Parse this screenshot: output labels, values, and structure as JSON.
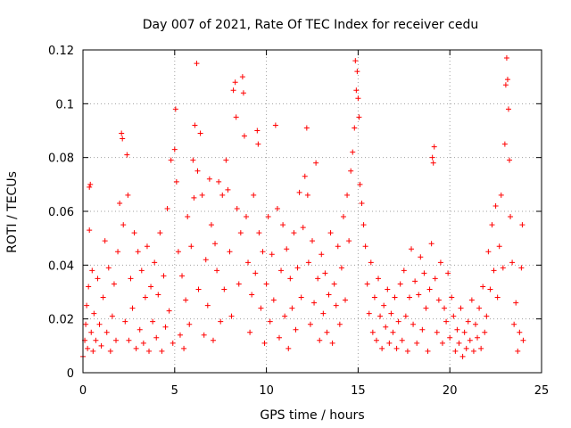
{
  "chart_data": {
    "type": "scatter",
    "title": "Day 007 of 2021, Rate Of TEC Index for receiver cedu",
    "xlabel": "GPS time / hours",
    "ylabel": "ROTI / TECUs",
    "xlim": [
      0,
      25
    ],
    "ylim": [
      0,
      0.12
    ],
    "xticks": [
      0,
      5,
      10,
      15,
      20,
      25
    ],
    "yticks": [
      0,
      0.02,
      0.04,
      0.06,
      0.08,
      0.1,
      0.12
    ],
    "xtick_labels": [
      "0",
      "5",
      "10",
      "15",
      "20",
      "25"
    ],
    "ytick_labels": [
      "0",
      "0.02",
      "0.04",
      "0.06",
      "0.08",
      "0.1",
      "0.12"
    ],
    "grid": true,
    "marker": "plus",
    "color": "#ff0000",
    "series": [
      {
        "points": [
          [
            0.0,
            0.006
          ],
          [
            0.1,
            0.012
          ],
          [
            0.15,
            0.018
          ],
          [
            0.2,
            0.025
          ],
          [
            0.25,
            0.009
          ],
          [
            0.3,
            0.032
          ],
          [
            0.35,
            0.069
          ],
          [
            0.35,
            0.053
          ],
          [
            0.4,
            0.07
          ],
          [
            0.45,
            0.015
          ],
          [
            0.5,
            0.038
          ],
          [
            0.55,
            0.008
          ],
          [
            0.6,
            0.022
          ],
          [
            0.7,
            0.012
          ],
          [
            0.8,
            0.035
          ],
          [
            0.9,
            0.018
          ],
          [
            1.0,
            0.01
          ],
          [
            1.1,
            0.028
          ],
          [
            1.2,
            0.049
          ],
          [
            1.3,
            0.015
          ],
          [
            1.4,
            0.039
          ],
          [
            1.5,
            0.008
          ],
          [
            1.6,
            0.021
          ],
          [
            1.7,
            0.033
          ],
          [
            1.8,
            0.012
          ],
          [
            1.9,
            0.045
          ],
          [
            2.0,
            0.063
          ],
          [
            2.1,
            0.089
          ],
          [
            2.15,
            0.087
          ],
          [
            2.2,
            0.055
          ],
          [
            2.3,
            0.019
          ],
          [
            2.4,
            0.081
          ],
          [
            2.45,
            0.066
          ],
          [
            2.5,
            0.012
          ],
          [
            2.6,
            0.035
          ],
          [
            2.7,
            0.024
          ],
          [
            2.8,
            0.052
          ],
          [
            2.9,
            0.009
          ],
          [
            3.0,
            0.045
          ],
          [
            3.1,
            0.016
          ],
          [
            3.2,
            0.038
          ],
          [
            3.3,
            0.011
          ],
          [
            3.4,
            0.028
          ],
          [
            3.5,
            0.047
          ],
          [
            3.6,
            0.008
          ],
          [
            3.7,
            0.032
          ],
          [
            3.8,
            0.019
          ],
          [
            3.9,
            0.041
          ],
          [
            4.0,
            0.013
          ],
          [
            4.1,
            0.029
          ],
          [
            4.2,
            0.052
          ],
          [
            4.3,
            0.008
          ],
          [
            4.4,
            0.036
          ],
          [
            4.5,
            0.017
          ],
          [
            4.6,
            0.061
          ],
          [
            4.7,
            0.023
          ],
          [
            4.8,
            0.079
          ],
          [
            4.9,
            0.011
          ],
          [
            5.0,
            0.083
          ],
          [
            5.05,
            0.098
          ],
          [
            5.1,
            0.071
          ],
          [
            5.2,
            0.045
          ],
          [
            5.3,
            0.014
          ],
          [
            5.4,
            0.036
          ],
          [
            5.5,
            0.009
          ],
          [
            5.6,
            0.027
          ],
          [
            5.7,
            0.058
          ],
          [
            5.8,
            0.018
          ],
          [
            5.9,
            0.047
          ],
          [
            6.0,
            0.079
          ],
          [
            6.05,
            0.065
          ],
          [
            6.1,
            0.092
          ],
          [
            6.2,
            0.115
          ],
          [
            6.25,
            0.075
          ],
          [
            6.3,
            0.031
          ],
          [
            6.4,
            0.089
          ],
          [
            6.5,
            0.066
          ],
          [
            6.6,
            0.014
          ],
          [
            6.7,
            0.042
          ],
          [
            6.8,
            0.025
          ],
          [
            6.9,
            0.072
          ],
          [
            7.0,
            0.055
          ],
          [
            7.1,
            0.012
          ],
          [
            7.2,
            0.048
          ],
          [
            7.3,
            0.038
          ],
          [
            7.4,
            0.071
          ],
          [
            7.5,
            0.019
          ],
          [
            7.6,
            0.066
          ],
          [
            7.7,
            0.031
          ],
          [
            7.8,
            0.079
          ],
          [
            7.9,
            0.068
          ],
          [
            8.0,
            0.045
          ],
          [
            8.1,
            0.021
          ],
          [
            8.2,
            0.105
          ],
          [
            8.3,
            0.108
          ],
          [
            8.35,
            0.095
          ],
          [
            8.4,
            0.061
          ],
          [
            8.5,
            0.033
          ],
          [
            8.6,
            0.052
          ],
          [
            8.7,
            0.11
          ],
          [
            8.75,
            0.104
          ],
          [
            8.8,
            0.088
          ],
          [
            8.9,
            0.058
          ],
          [
            9.0,
            0.041
          ],
          [
            9.1,
            0.015
          ],
          [
            9.2,
            0.029
          ],
          [
            9.3,
            0.066
          ],
          [
            9.4,
            0.037
          ],
          [
            9.5,
            0.09
          ],
          [
            9.55,
            0.085
          ],
          [
            9.6,
            0.052
          ],
          [
            9.7,
            0.024
          ],
          [
            9.8,
            0.045
          ],
          [
            9.9,
            0.011
          ],
          [
            10.0,
            0.033
          ],
          [
            10.1,
            0.058
          ],
          [
            10.2,
            0.019
          ],
          [
            10.3,
            0.044
          ],
          [
            10.4,
            0.027
          ],
          [
            10.5,
            0.092
          ],
          [
            10.6,
            0.061
          ],
          [
            10.7,
            0.013
          ],
          [
            10.8,
            0.038
          ],
          [
            10.9,
            0.055
          ],
          [
            11.0,
            0.021
          ],
          [
            11.1,
            0.046
          ],
          [
            11.2,
            0.009
          ],
          [
            11.3,
            0.035
          ],
          [
            11.4,
            0.024
          ],
          [
            11.5,
            0.052
          ],
          [
            11.6,
            0.016
          ],
          [
            11.7,
            0.039
          ],
          [
            11.8,
            0.067
          ],
          [
            11.9,
            0.028
          ],
          [
            12.0,
            0.054
          ],
          [
            12.1,
            0.073
          ],
          [
            12.2,
            0.091
          ],
          [
            12.25,
            0.066
          ],
          [
            12.3,
            0.041
          ],
          [
            12.4,
            0.018
          ],
          [
            12.5,
            0.049
          ],
          [
            12.6,
            0.026
          ],
          [
            12.7,
            0.078
          ],
          [
            12.8,
            0.035
          ],
          [
            12.9,
            0.012
          ],
          [
            13.0,
            0.044
          ],
          [
            13.1,
            0.022
          ],
          [
            13.2,
            0.037
          ],
          [
            13.3,
            0.015
          ],
          [
            13.4,
            0.029
          ],
          [
            13.5,
            0.052
          ],
          [
            13.6,
            0.011
          ],
          [
            13.7,
            0.033
          ],
          [
            13.8,
            0.025
          ],
          [
            13.9,
            0.047
          ],
          [
            14.0,
            0.018
          ],
          [
            14.1,
            0.039
          ],
          [
            14.2,
            0.058
          ],
          [
            14.3,
            0.027
          ],
          [
            14.4,
            0.066
          ],
          [
            14.5,
            0.049
          ],
          [
            14.6,
            0.075
          ],
          [
            14.7,
            0.082
          ],
          [
            14.8,
            0.091
          ],
          [
            14.85,
            0.116
          ],
          [
            14.9,
            0.105
          ],
          [
            14.95,
            0.112
          ],
          [
            15.0,
            0.102
          ],
          [
            15.05,
            0.095
          ],
          [
            15.1,
            0.07
          ],
          [
            15.2,
            0.063
          ],
          [
            15.3,
            0.055
          ],
          [
            15.4,
            0.047
          ],
          [
            15.5,
            0.033
          ],
          [
            15.6,
            0.022
          ],
          [
            15.7,
            0.041
          ],
          [
            15.8,
            0.015
          ],
          [
            15.9,
            0.028
          ],
          [
            16.0,
            0.012
          ],
          [
            16.1,
            0.035
          ],
          [
            16.2,
            0.021
          ],
          [
            16.3,
            0.009
          ],
          [
            16.4,
            0.025
          ],
          [
            16.5,
            0.017
          ],
          [
            16.6,
            0.031
          ],
          [
            16.7,
            0.011
          ],
          [
            16.8,
            0.022
          ],
          [
            16.9,
            0.015
          ],
          [
            17.0,
            0.028
          ],
          [
            17.1,
            0.009
          ],
          [
            17.2,
            0.019
          ],
          [
            17.3,
            0.033
          ],
          [
            17.4,
            0.012
          ],
          [
            17.5,
            0.038
          ],
          [
            17.6,
            0.021
          ],
          [
            17.7,
            0.008
          ],
          [
            17.8,
            0.028
          ],
          [
            17.9,
            0.046
          ],
          [
            18.0,
            0.018
          ],
          [
            18.1,
            0.034
          ],
          [
            18.2,
            0.011
          ],
          [
            18.3,
            0.029
          ],
          [
            18.4,
            0.043
          ],
          [
            18.5,
            0.016
          ],
          [
            18.6,
            0.037
          ],
          [
            18.7,
            0.024
          ],
          [
            18.8,
            0.008
          ],
          [
            18.9,
            0.031
          ],
          [
            19.0,
            0.048
          ],
          [
            19.05,
            0.08
          ],
          [
            19.1,
            0.078
          ],
          [
            19.15,
            0.084
          ],
          [
            19.2,
            0.035
          ],
          [
            19.3,
            0.015
          ],
          [
            19.4,
            0.027
          ],
          [
            19.5,
            0.041
          ],
          [
            19.6,
            0.011
          ],
          [
            19.7,
            0.024
          ],
          [
            19.8,
            0.019
          ],
          [
            19.9,
            0.037
          ],
          [
            20.0,
            0.013
          ],
          [
            20.1,
            0.028
          ],
          [
            20.2,
            0.021
          ],
          [
            20.3,
            0.008
          ],
          [
            20.4,
            0.016
          ],
          [
            20.5,
            0.011
          ],
          [
            20.6,
            0.024
          ],
          [
            20.7,
            0.006
          ],
          [
            20.8,
            0.015
          ],
          [
            20.9,
            0.009
          ],
          [
            21.0,
            0.019
          ],
          [
            21.1,
            0.012
          ],
          [
            21.2,
            0.027
          ],
          [
            21.3,
            0.008
          ],
          [
            21.4,
            0.018
          ],
          [
            21.5,
            0.013
          ],
          [
            21.6,
            0.024
          ],
          [
            21.7,
            0.009
          ],
          [
            21.8,
            0.032
          ],
          [
            21.9,
            0.015
          ],
          [
            22.0,
            0.021
          ],
          [
            22.1,
            0.045
          ],
          [
            22.2,
            0.031
          ],
          [
            22.3,
            0.055
          ],
          [
            22.4,
            0.038
          ],
          [
            22.5,
            0.062
          ],
          [
            22.6,
            0.028
          ],
          [
            22.7,
            0.047
          ],
          [
            22.8,
            0.066
          ],
          [
            22.9,
            0.039
          ],
          [
            23.0,
            0.085
          ],
          [
            23.05,
            0.107
          ],
          [
            23.1,
            0.117
          ],
          [
            23.15,
            0.109
          ],
          [
            23.2,
            0.098
          ],
          [
            23.25,
            0.079
          ],
          [
            23.3,
            0.058
          ],
          [
            23.4,
            0.041
          ],
          [
            23.5,
            0.018
          ],
          [
            23.6,
            0.026
          ],
          [
            23.7,
            0.008
          ],
          [
            23.8,
            0.015
          ],
          [
            23.9,
            0.039
          ],
          [
            23.95,
            0.055
          ],
          [
            24.0,
            0.012
          ]
        ]
      }
    ]
  }
}
